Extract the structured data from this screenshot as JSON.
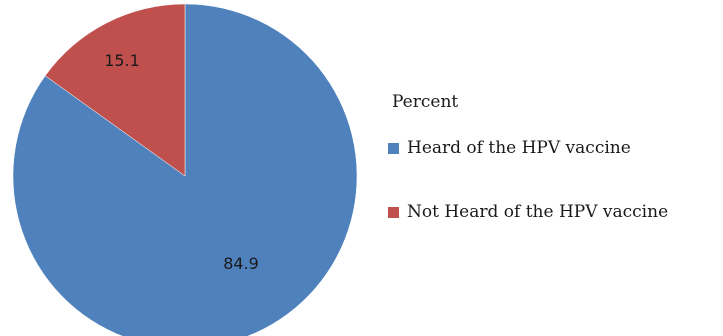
{
  "chart_data": {
    "type": "pie",
    "legend_title": "Percent",
    "legend_position": "right",
    "start_angle_deg": 0,
    "direction": "clockwise",
    "slices": [
      {
        "label": "Heard of the HPV vaccine",
        "value": 84.9,
        "value_label": "84.9",
        "color": "#4f81bd"
      },
      {
        "label": "Not Heard of the HPV vaccine",
        "value": 15.1,
        "value_label": "15.1",
        "color": "#c0504d"
      }
    ]
  }
}
